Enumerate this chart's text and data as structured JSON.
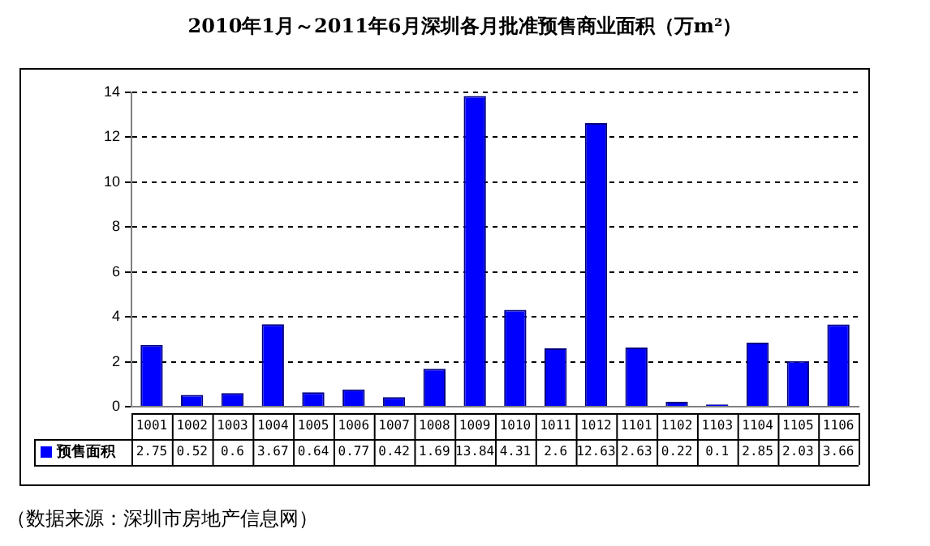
{
  "chart_data": {
    "type": "bar",
    "title": "2010年1月～2011年6月深圳各月批准预售商业面积（万m²）",
    "categories": [
      "1001",
      "1002",
      "1003",
      "1004",
      "1005",
      "1006",
      "1007",
      "1008",
      "1009",
      "1010",
      "1011",
      "1012",
      "1101",
      "1102",
      "1103",
      "1104",
      "1105",
      "1106"
    ],
    "series": [
      {
        "name": "预售面积",
        "color": "#0000ff",
        "values": [
          2.75,
          0.52,
          0.6,
          3.67,
          0.64,
          0.77,
          0.42,
          1.69,
          13.84,
          4.31,
          2.6,
          12.63,
          2.63,
          0.22,
          0.1,
          2.85,
          2.03,
          3.66
        ]
      }
    ],
    "ylim": [
      0,
      14
    ],
    "yticks": [
      0,
      2,
      4,
      6,
      8,
      10,
      12,
      14
    ],
    "grid": "y",
    "legend": "bottom",
    "data_labels": true,
    "annotations": [
      "（数据来源：深圳市房地产信息网）"
    ]
  }
}
